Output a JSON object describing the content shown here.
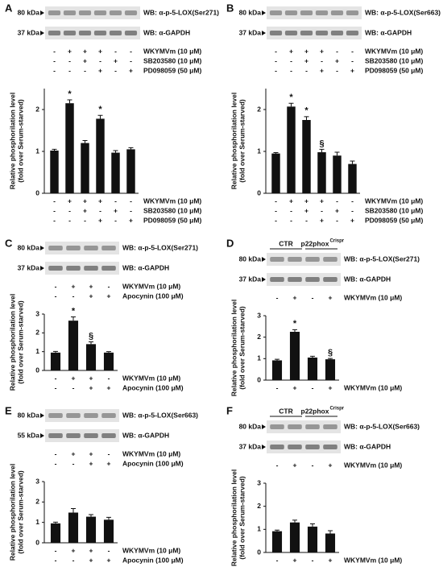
{
  "chart_data": [
    {
      "type": "bar",
      "panel": "A",
      "blots": [
        {
          "size": "80 kDa",
          "label": "WB: α-p-5-LOX(Ser271)"
        },
        {
          "size": "37 kDa",
          "label": "WB: α-GAPDH"
        }
      ],
      "conditions": [
        {
          "name": "WKYMVm (10 μM)",
          "signs": [
            "-",
            "+",
            "+",
            "+",
            "-",
            "-"
          ]
        },
        {
          "name": "SB203580 (10 μM)",
          "signs": [
            "-",
            "-",
            "+",
            "-",
            "+",
            "-"
          ]
        },
        {
          "name": "PD098059 (50 μM)",
          "signs": [
            "-",
            "-",
            "-",
            "+",
            "-",
            "+"
          ]
        }
      ],
      "ylabel": [
        "Relative phosphorilation level",
        "(fold over Serum-starved)"
      ],
      "values": [
        1.02,
        2.15,
        1.2,
        1.78,
        0.97,
        1.05
      ],
      "errors": [
        0.03,
        0.08,
        0.06,
        0.08,
        0.05,
        0.04
      ],
      "annotations": [
        null,
        "*",
        null,
        "*",
        null,
        null
      ],
      "ylim": [
        0,
        2.5
      ],
      "yticks": [
        0,
        1,
        2
      ],
      "color": "#111111"
    },
    {
      "type": "bar",
      "panel": "B",
      "blots": [
        {
          "size": "80 kDa",
          "label": "WB: α-p-5-LOX(Ser663)"
        },
        {
          "size": "37 kDa",
          "label": "WB: α-GAPDH"
        }
      ],
      "conditions": [
        {
          "name": "WKYMVm (10 μM)",
          "signs": [
            "-",
            "+",
            "+",
            "+",
            "-",
            "-"
          ]
        },
        {
          "name": "SB203580 (10 μM)",
          "signs": [
            "-",
            "-",
            "+",
            "-",
            "+",
            "-"
          ]
        },
        {
          "name": "PD098059 (50 μM)",
          "signs": [
            "-",
            "-",
            "-",
            "+",
            "-",
            "+"
          ]
        }
      ],
      "ylabel": [
        "Relative phosphorilation level",
        "(fold over Serum-starved)"
      ],
      "values": [
        0.95,
        2.07,
        1.75,
        0.98,
        0.9,
        0.7
      ],
      "errors": [
        0.02,
        0.08,
        0.08,
        0.07,
        0.08,
        0.07
      ],
      "annotations": [
        null,
        "*",
        "*",
        "§",
        null,
        null
      ],
      "ylim": [
        0,
        2.5
      ],
      "yticks": [
        0,
        1,
        2
      ],
      "color": "#111111"
    },
    {
      "type": "bar",
      "panel": "C",
      "blots": [
        {
          "size": "80 kDa",
          "label": "WB: α-p-5-LOX(Ser271)"
        },
        {
          "size": "37 kDa",
          "label": "WB: α-GAPDH"
        }
      ],
      "conditions": [
        {
          "name": "WKYMVm (10 μM)",
          "signs": [
            "-",
            "+",
            "+",
            "-"
          ]
        },
        {
          "name": "Apocynin (100 μM)",
          "signs": [
            "-",
            "-",
            "+",
            "+"
          ]
        }
      ],
      "ylabel": [
        "Relative phosphorilation level",
        "(fold over Serum-starved)"
      ],
      "values": [
        0.95,
        2.65,
        1.4,
        0.95
      ],
      "errors": [
        0.06,
        0.2,
        0.12,
        0.05
      ],
      "annotations": [
        null,
        "*",
        "§",
        null
      ],
      "ylim": [
        0,
        3
      ],
      "yticks": [
        0,
        1,
        2,
        3
      ],
      "color": "#111111"
    },
    {
      "type": "bar",
      "panel": "D",
      "groups": [
        {
          "name": "CTR"
        },
        {
          "name": "p22phox",
          "sup": "Crispr"
        }
      ],
      "blots": [
        {
          "size": "80 kDa",
          "label": "WB: α-p-5-LOX(Ser271)"
        },
        {
          "size": "37 kDa",
          "label": "WB: α-GAPDH"
        }
      ],
      "conditions": [
        {
          "name": "WKYMVm (10 μM)",
          "signs": [
            "-",
            "+",
            "-",
            "+"
          ]
        }
      ],
      "ylabel": [
        "Relative phosphorilation level",
        "(fold over Serum-starved)"
      ],
      "values": [
        0.92,
        2.25,
        1.05,
        0.97
      ],
      "errors": [
        0.05,
        0.1,
        0.06,
        0.04
      ],
      "annotations": [
        null,
        "*",
        null,
        "§"
      ],
      "ylim": [
        0,
        3
      ],
      "yticks": [
        0,
        1,
        2,
        3
      ],
      "color": "#111111"
    },
    {
      "type": "bar",
      "panel": "E",
      "blots": [
        {
          "size": "80 kDa",
          "label": "WB: α-p-5-LOX(Ser663)"
        },
        {
          "size": "55 kDa",
          "label": "WB: α-GAPDH"
        }
      ],
      "conditions": [
        {
          "name": "WKYMVm (10 μM)",
          "signs": [
            "-",
            "+",
            "+",
            "-"
          ]
        },
        {
          "name": "Apocynin (100 μM)",
          "signs": [
            "-",
            "-",
            "+",
            "+"
          ]
        }
      ],
      "ylabel": [
        "Relative phosphorilation level",
        "(fold over Serum-starved)"
      ],
      "values": [
        0.95,
        1.48,
        1.28,
        1.13
      ],
      "errors": [
        0.06,
        0.2,
        0.1,
        0.12
      ],
      "ylim": [
        0,
        3
      ],
      "yticks": [
        0,
        1,
        2,
        3
      ],
      "color": "#111111"
    },
    {
      "type": "bar",
      "panel": "F",
      "groups": [
        {
          "name": "CTR"
        },
        {
          "name": "p22phox",
          "sup": "Crispr"
        }
      ],
      "blots": [
        {
          "size": "80 kDa",
          "label": "WB: α-p-5-LOX(Ser663)"
        },
        {
          "size": "37 kDa",
          "label": "WB: α-GAPDH"
        }
      ],
      "conditions": [
        {
          "name": "WKYMVm (10 μM)",
          "signs": [
            "-",
            "+",
            "-",
            "+"
          ]
        }
      ],
      "ylabel": [
        "Relative phosphorilation level",
        "(fold over Serum-starved)"
      ],
      "values": [
        0.92,
        1.3,
        1.12,
        0.82
      ],
      "errors": [
        0.05,
        0.1,
        0.12,
        0.12
      ],
      "ylim": [
        0,
        3
      ],
      "yticks": [
        0,
        1,
        2,
        3
      ],
      "color": "#111111"
    }
  ]
}
